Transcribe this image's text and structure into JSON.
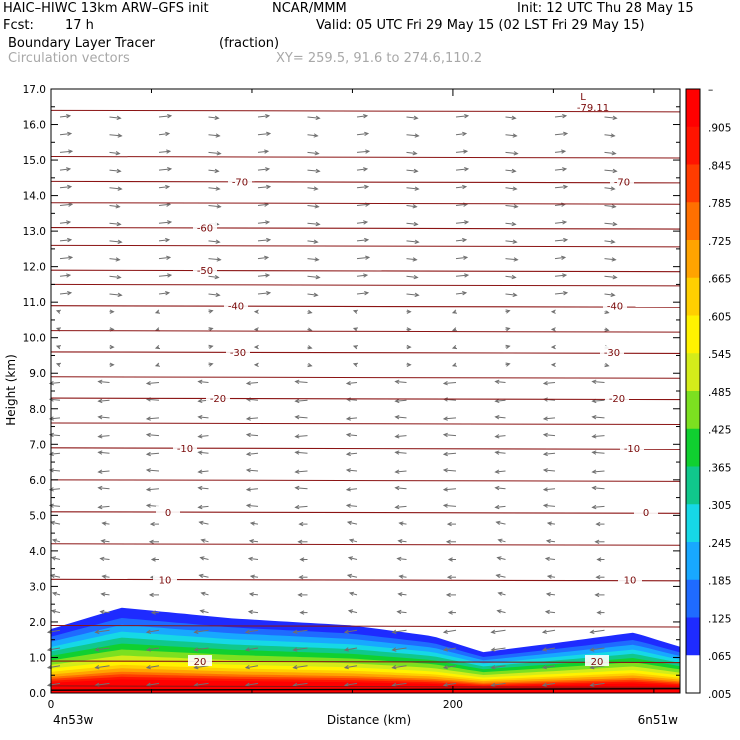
{
  "header": {
    "model": "HAIC–HIWC 13km ARW–GFS init",
    "org": "NCAR/MMM",
    "init": "Init: 12 UTC Thu 28 May 15",
    "fcst_label": "Fcst:",
    "fcst_value": "17 h",
    "valid": "Valid: 05 UTC Fri 29 May 15 (02 LST Fri 29 May 15)",
    "field1": "Boundary Layer Tracer",
    "field1_units": "(fraction)",
    "field2": "Circulation vectors",
    "xy": "XY= 259.5, 91.6 to 274.6,110.2"
  },
  "colors": {
    "temperature_contour": "#8b1414",
    "vector": "#707070",
    "tracer_scale": [
      "#ffffff",
      "#1e2bff",
      "#1f6bff",
      "#18a8ff",
      "#16d8e6",
      "#10c88c",
      "#10d030",
      "#7ce020",
      "#d4ec1a",
      "#fff200",
      "#ffcf00",
      "#ffa300",
      "#ff7000",
      "#ff3c00",
      "#ff1400",
      "#ff0000"
    ]
  },
  "chart_data": {
    "type": "heatmap",
    "title": "Boundary Layer Tracer",
    "units": "(fraction)",
    "xlabel": "Distance (km)",
    "ylabel": "Height (km)",
    "xlim": [
      0,
      313
    ],
    "ylim": [
      0,
      17
    ],
    "x_ticks": [
      {
        "value": 0,
        "label": "0"
      },
      {
        "value": 200,
        "label": "200"
      }
    ],
    "x_endpoint_labels": [
      "4n53w",
      "6n51w"
    ],
    "y_ticks": [
      "0.0",
      "1.0",
      "2.0",
      "3.0",
      "4.0",
      "5.0",
      "6.0",
      "7.0",
      "8.0",
      "9.0",
      "10.0",
      "11.0",
      "12.0",
      "13.0",
      "14.0",
      "15.0",
      "16.0",
      "17.0"
    ],
    "colorbar_labels": [
      "–",
      ".905",
      ".845",
      ".785",
      ".725",
      ".665",
      ".605",
      ".545",
      ".485",
      ".425",
      ".365",
      ".305",
      ".245",
      ".185",
      ".125",
      ".065",
      ".005"
    ],
    "temperature_contours": [
      {
        "label": "-70",
        "height_km": 14.4
      },
      {
        "label": "-60",
        "height_km": 13.1
      },
      {
        "label": "-50",
        "height_km": 11.9
      },
      {
        "label": "-40",
        "height_km": 10.9
      },
      {
        "label": "-30",
        "height_km": 9.6
      },
      {
        "label": "-20",
        "height_km": 8.3
      },
      {
        "label": "-10",
        "height_km": 6.9
      },
      {
        "label": "0",
        "height_km": 5.1
      },
      {
        "label": "10",
        "height_km": 3.2
      },
      {
        "label": "20",
        "height_km": 0.9
      }
    ],
    "low_label": "L",
    "low_value": "-79.11",
    "tracer_top_km": [
      {
        "x": 0,
        "top": 1.8
      },
      {
        "x": 35,
        "top": 2.4
      },
      {
        "x": 90,
        "top": 2.1
      },
      {
        "x": 150,
        "top": 1.9
      },
      {
        "x": 190,
        "top": 1.6
      },
      {
        "x": 215,
        "top": 1.15
      },
      {
        "x": 250,
        "top": 1.4
      },
      {
        "x": 290,
        "top": 1.7
      },
      {
        "x": 313,
        "top": 1.3
      }
    ]
  }
}
